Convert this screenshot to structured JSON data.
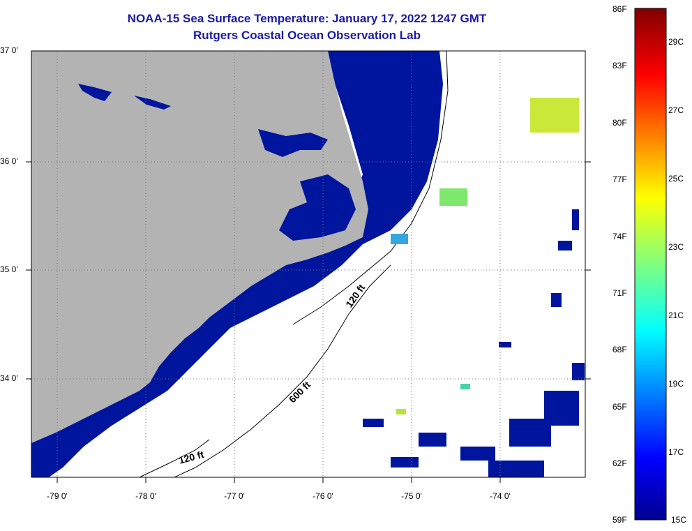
{
  "title": {
    "line1": "NOAA-15 Sea Surface Temperature:  January 17, 2022 1247 GMT",
    "line2": "Rutgers Coastal Ocean Observation Lab"
  },
  "map": {
    "lat_labels": [
      {
        "lat": 37.0,
        "label": "37 0'"
      },
      {
        "lat": 36.0,
        "label": "36 0'"
      },
      {
        "lat": 35.0,
        "label": "35 0'"
      },
      {
        "lat": 34.0,
        "label": "34 0'"
      }
    ],
    "lon_labels": [
      {
        "lon": -79.0,
        "label": "-79 0'"
      },
      {
        "lon": -78.0,
        "label": "-78 0'"
      },
      {
        "lon": -77.0,
        "label": "-77 0'"
      },
      {
        "lon": -76.0,
        "label": "-76 0'"
      },
      {
        "lon": -75.0,
        "label": "-75 0'"
      },
      {
        "lon": -74.0,
        "label": "-74 0'"
      }
    ],
    "isobath_labels": [
      {
        "label": "120 ft"
      },
      {
        "label": "600 ft"
      },
      {
        "label": "120 ft"
      }
    ],
    "colors": {
      "land": "#b3b3b3",
      "nearshore_water": "#00159e",
      "cloud": "#ffffff",
      "warm_patch": "#c9e83a"
    }
  },
  "colorbar": {
    "fahrenheit_labels": [
      "86F",
      "83F",
      "80F",
      "77F",
      "74F",
      "71F",
      "68F",
      "65F",
      "62F",
      "59F"
    ],
    "celsius_labels": [
      "29C",
      "27C",
      "25C",
      "23C",
      "21C",
      "19C",
      "17C",
      "15C"
    ]
  }
}
